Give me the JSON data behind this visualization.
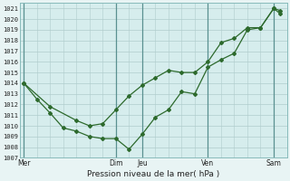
{
  "xlabel": "Pression niveau de la mer( hPa )",
  "background_color": "#e8f4f4",
  "plot_bg_color": "#d6eded",
  "grid_color": "#b0cccc",
  "line_color": "#2d6a2d",
  "ylim": [
    1007,
    1021.5
  ],
  "yticks": [
    1007,
    1008,
    1009,
    1010,
    1011,
    1012,
    1013,
    1014,
    1015,
    1016,
    1017,
    1018,
    1019,
    1020,
    1021
  ],
  "day_labels": [
    "Mer",
    "",
    "Dim",
    "Jeu",
    "",
    "Ven",
    "",
    "Sam"
  ],
  "day_positions": [
    0,
    3.5,
    7,
    9,
    11.5,
    14,
    16.5,
    19
  ],
  "vline_positions": [
    0,
    7,
    9,
    14,
    19
  ],
  "xlim": [
    -0.3,
    20.0
  ],
  "line1_x": [
    0,
    2,
    4,
    5,
    6,
    7,
    8,
    9,
    10,
    11,
    12,
    13,
    14,
    15,
    16,
    17,
    18,
    19,
    19.5
  ],
  "line1_y": [
    1014.0,
    1011.8,
    1010.5,
    1010.0,
    1010.2,
    1011.5,
    1012.8,
    1013.8,
    1014.5,
    1015.2,
    1015.0,
    1015.0,
    1016.0,
    1017.8,
    1018.2,
    1019.2,
    1019.2,
    1021.0,
    1020.8
  ],
  "line2_x": [
    0,
    1,
    2,
    3,
    4,
    5,
    6,
    7,
    8,
    9,
    10,
    11,
    12,
    13,
    14,
    15,
    16,
    17,
    18,
    19,
    19.5
  ],
  "line2_y": [
    1014.0,
    1012.5,
    1011.2,
    1009.8,
    1009.5,
    1009.0,
    1008.8,
    1008.8,
    1007.8,
    1009.2,
    1010.8,
    1011.5,
    1013.2,
    1013.0,
    1015.5,
    1016.2,
    1016.8,
    1019.0,
    1019.2,
    1021.0,
    1020.5
  ],
  "marker": "D",
  "marker_size": 2.0,
  "line_width": 0.9
}
